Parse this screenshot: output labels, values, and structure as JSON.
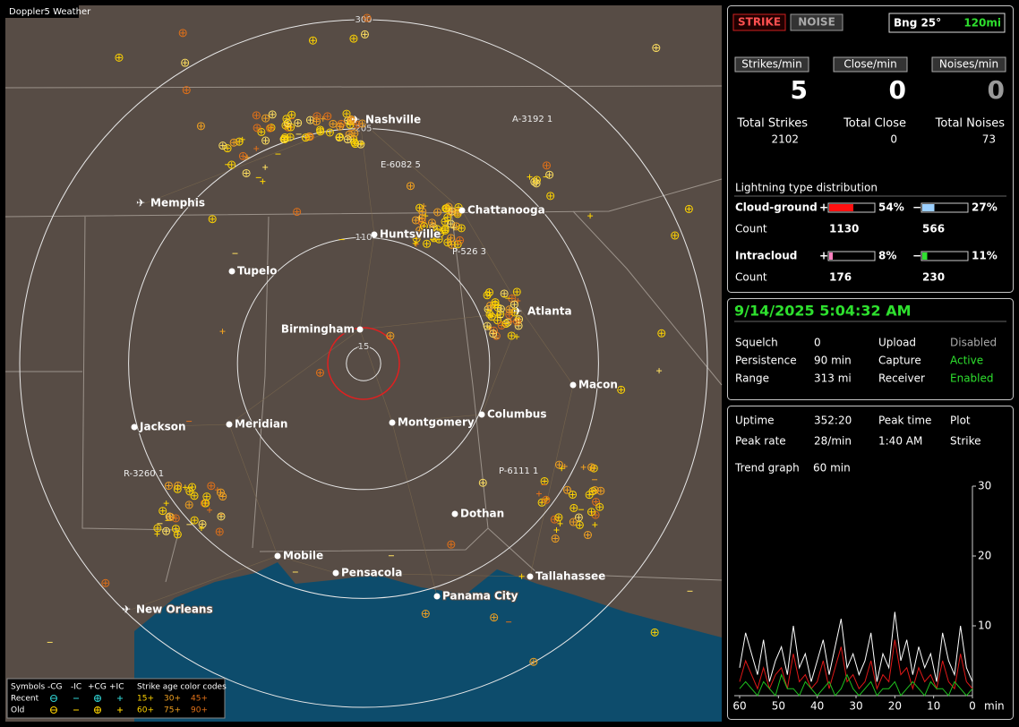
{
  "map": {
    "brand": "Doppler5 Weather",
    "ring_labels": [
      15,
      110,
      205,
      300
    ],
    "cities": [
      "Nashville",
      "Memphis",
      "Chattanooga",
      "Huntsville",
      "Tupelo",
      "Atlanta",
      "Birmingham",
      "Macon",
      "Montgomery",
      "Columbus",
      "Jackson",
      "Meridian",
      "Dothan",
      "Mobile",
      "Pensacola",
      "Panama City",
      "Tallahassee",
      "New Orleans"
    ],
    "cells": [
      "A-3192 1",
      "E-6082 5",
      "P-526 3",
      "P-6111 1",
      "R-3260 1"
    ],
    "legend": {
      "symbols": "Symbols",
      "minus_cg": "-CG",
      "minus_ic": "-IC",
      "plus_cg": "+CG",
      "plus_ic": "+IC",
      "age_title": "Strike age color codes",
      "recent": "Recent",
      "old": "Old",
      "ages": [
        "15+",
        "30+",
        "45+",
        "60+",
        "75+",
        "90+"
      ]
    }
  },
  "status": {
    "strike_button": "STRIKE",
    "noise_button": "NOISE",
    "bearing": "Bng 25°",
    "range_short": "120mi",
    "rates": [
      {
        "label": "Strikes/min",
        "value": 5
      },
      {
        "label": "Close/min",
        "value": 0
      },
      {
        "label": "Noises/min",
        "value": 0
      }
    ],
    "totals": [
      {
        "label": "Total Strikes",
        "value": 2102
      },
      {
        "label": "Total Close",
        "value": 0
      },
      {
        "label": "Total Noises",
        "value": 73
      }
    ],
    "distribution": {
      "title": "Lightning type distribution",
      "count_label": "Count",
      "rows": [
        {
          "label": "Cloud-ground",
          "plus": {
            "sign": "+",
            "percent": 54,
            "percent_label": "54%",
            "count": 1130
          },
          "minus": {
            "sign": "−",
            "percent": 27,
            "percent_label": "27%",
            "count": 566
          }
        },
        {
          "label": "Intracloud",
          "plus": {
            "sign": "+",
            "percent": 8,
            "percent_label": "8%",
            "count": 176
          },
          "minus": {
            "sign": "−",
            "percent": 11,
            "percent_label": "11%",
            "count": 230
          }
        }
      ]
    }
  },
  "clock": {
    "datetime": "9/14/2025 5:04:32 AM",
    "rows": [
      [
        "Squelch",
        "0",
        "Upload",
        "Disabled"
      ],
      [
        "Persistence",
        "90 min",
        "Capture",
        "Active"
      ],
      [
        "Range",
        "313 mi",
        "Receiver",
        "Enabled"
      ]
    ]
  },
  "stats": {
    "rows": [
      [
        "Uptime",
        "352:20",
        "Peak time",
        "Plot"
      ],
      [
        "Peak rate",
        "28/min",
        "1:40 AM",
        "Strike"
      ]
    ],
    "trend_label": "Trend graph",
    "trend_value": "60 min"
  },
  "trend": {
    "ylim": [
      0,
      30
    ],
    "yticks": [
      10,
      20,
      30
    ],
    "xlim": [
      60,
      0
    ],
    "xticks": [
      60,
      50,
      40,
      30,
      20,
      10,
      0
    ],
    "x_unit": "min",
    "series": [
      {
        "color": "#ffffff",
        "values": [
          4,
          9,
          6,
          3,
          8,
          2,
          5,
          7,
          3,
          10,
          4,
          6,
          2,
          5,
          8,
          3,
          7,
          11,
          4,
          6,
          3,
          5,
          9,
          2,
          6,
          4,
          12,
          5,
          8,
          3,
          7,
          4,
          6,
          2,
          9,
          5,
          3,
          10,
          4,
          2
        ]
      },
      {
        "color": "#e01818",
        "values": [
          2,
          5,
          3,
          1,
          4,
          1,
          3,
          4,
          1,
          6,
          2,
          3,
          1,
          2,
          5,
          1,
          4,
          7,
          2,
          3,
          1,
          2,
          5,
          1,
          3,
          2,
          8,
          3,
          4,
          1,
          4,
          2,
          3,
          1,
          5,
          2,
          1,
          6,
          2,
          1
        ]
      },
      {
        "color": "#1fc01f",
        "values": [
          1,
          2,
          1,
          0,
          2,
          1,
          0,
          3,
          1,
          1,
          0,
          2,
          1,
          0,
          1,
          2,
          0,
          1,
          3,
          1,
          0,
          1,
          2,
          0,
          1,
          1,
          2,
          0,
          1,
          2,
          1,
          0,
          2,
          1,
          1,
          0,
          2,
          1,
          0,
          1
        ]
      }
    ]
  }
}
